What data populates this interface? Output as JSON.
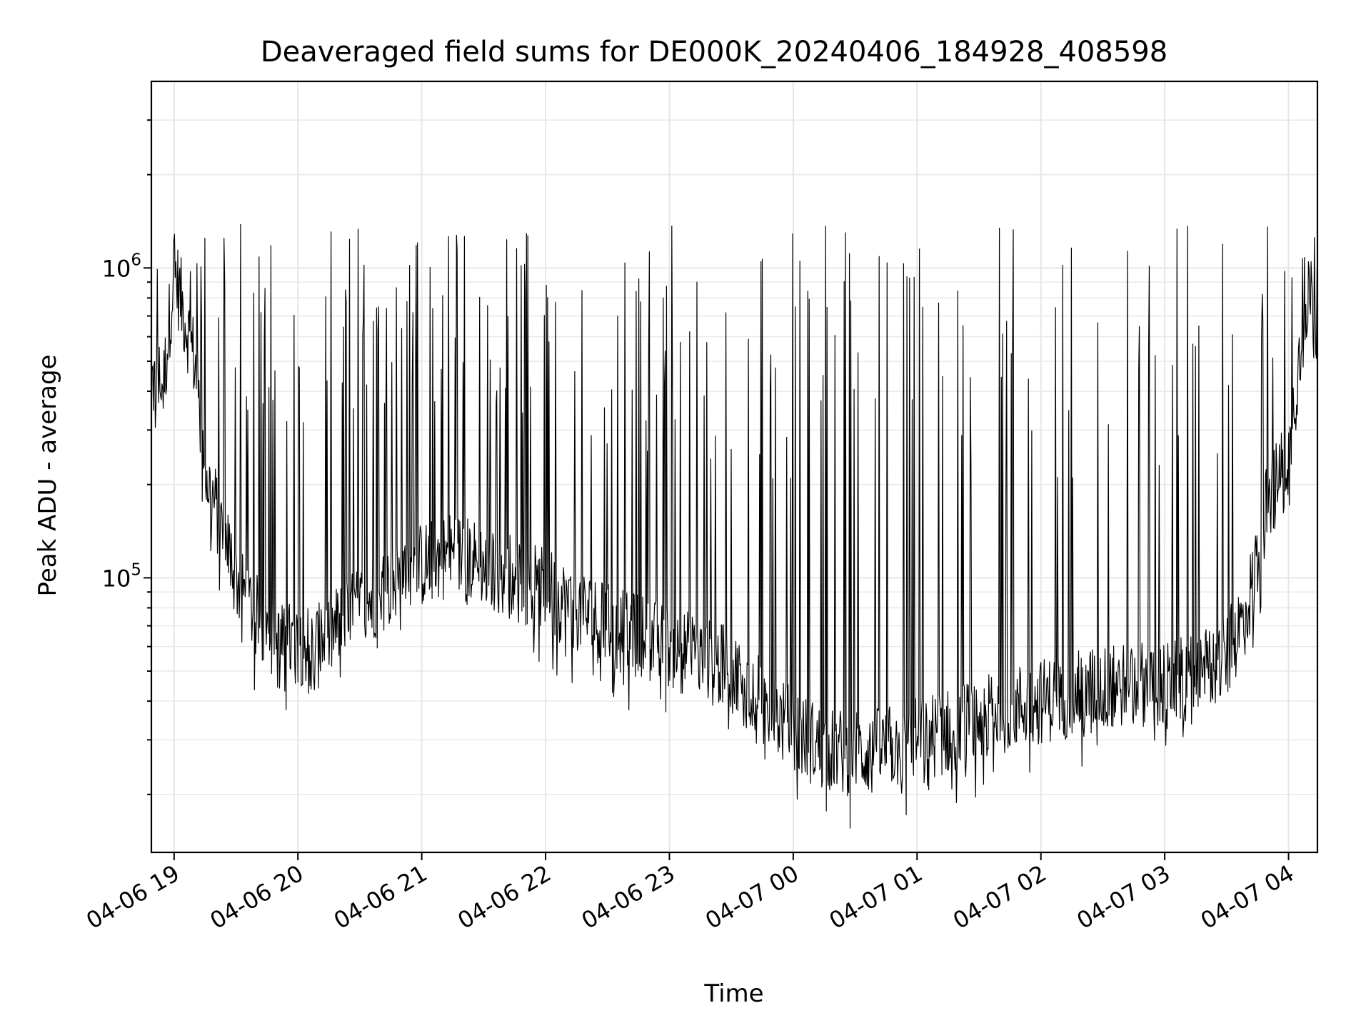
{
  "chart_data": {
    "type": "line",
    "title": "Deaveraged field sums for DE000K_20240406_184928_408598",
    "xlabel": "Time",
    "ylabel": "Peak ADU - average",
    "yscale": "log",
    "xlim": [
      "2024-04-06 18:49",
      "2024-04-07 04:14"
    ],
    "ylim": [
      13000,
      4000000
    ],
    "grid": true,
    "line_color": "#000000",
    "x_ticks": [
      "04-06 19",
      "04-06 20",
      "04-06 21",
      "04-06 22",
      "04-06 23",
      "04-07 00",
      "04-07 01",
      "04-07 02",
      "04-07 03",
      "04-07 04"
    ],
    "y_ticks": [
      {
        "value": 100000,
        "base": "10",
        "exp": "5"
      },
      {
        "value": 1000000,
        "base": "10",
        "exp": "6"
      }
    ],
    "series": [
      {
        "x": [
          "2024-04-06 18:49",
          "2024-04-06 18:55",
          "2024-04-06 19:00",
          "2024-04-06 19:05",
          "2024-04-06 19:10",
          "2024-04-06 19:15",
          "2024-04-06 19:20",
          "2024-04-06 19:25",
          "2024-04-06 19:30",
          "2024-04-06 19:35",
          "2024-04-06 19:40",
          "2024-04-06 19:45",
          "2024-04-06 19:50",
          "2024-04-06 20:00",
          "2024-04-06 20:10",
          "2024-04-06 20:20",
          "2024-04-06 20:30",
          "2024-04-06 20:40",
          "2024-04-06 20:50",
          "2024-04-06 21:00",
          "2024-04-06 21:15",
          "2024-04-06 21:30",
          "2024-04-06 21:45",
          "2024-04-06 22:00",
          "2024-04-06 22:15",
          "2024-04-06 22:30",
          "2024-04-06 22:45",
          "2024-04-06 23:00",
          "2024-04-06 23:15",
          "2024-04-06 23:30",
          "2024-04-06 23:45",
          "2024-04-07 00:00",
          "2024-04-07 00:15",
          "2024-04-07 00:30",
          "2024-04-07 00:45",
          "2024-04-07 01:00",
          "2024-04-07 01:15",
          "2024-04-07 01:30",
          "2024-04-07 01:45",
          "2024-04-07 02:00",
          "2024-04-07 02:15",
          "2024-04-07 02:30",
          "2024-04-07 02:45",
          "2024-04-07 03:00",
          "2024-04-07 03:15",
          "2024-04-07 03:30",
          "2024-04-07 03:40",
          "2024-04-07 03:50",
          "2024-04-07 04:00",
          "2024-04-07 04:05",
          "2024-04-07 04:10",
          "2024-04-07 04:14"
        ],
        "values": [
          430000,
          420000,
          1000000,
          700000,
          500000,
          220000,
          170000,
          130000,
          100000,
          85000,
          75000,
          68000,
          60000,
          62000,
          60000,
          70000,
          80000,
          90000,
          100000,
          110000,
          120000,
          110000,
          100000,
          90000,
          80000,
          70000,
          65000,
          60000,
          55000,
          50000,
          40000,
          32000,
          28000,
          27000,
          28000,
          30000,
          32000,
          35000,
          38000,
          40000,
          42000,
          44000,
          46000,
          45000,
          48000,
          55000,
          80000,
          180000,
          250000,
          500000,
          900000,
          600000
        ]
      }
    ]
  }
}
